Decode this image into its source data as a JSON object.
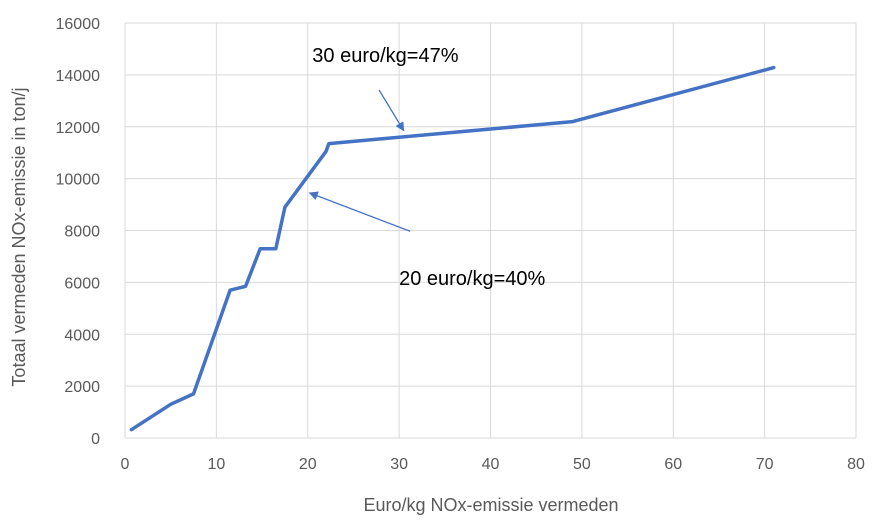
{
  "chart_data": {
    "type": "line",
    "title": "",
    "xlabel": "Euro/kg NOx-emissie vermeden",
    "ylabel": "Totaal vermeden  NOx-emissie in ton/j",
    "xlim": [
      0,
      80
    ],
    "ylim": [
      0,
      16000
    ],
    "x_ticks": [
      "0",
      "10",
      "20",
      "30",
      "40",
      "50",
      "60",
      "70",
      "80"
    ],
    "y_ticks": [
      "0",
      "2000",
      "4000",
      "6000",
      "8000",
      "10000",
      "12000",
      "14000",
      "16000"
    ],
    "grid": true,
    "legend": "none",
    "series": [
      {
        "color": "#4472C4",
        "x": [
          0.7,
          5,
          7.5,
          11.5,
          13.2,
          14.8,
          16.5,
          17.5,
          22,
          22.3,
          49,
          71
        ],
        "y": [
          320,
          1300,
          1700,
          5700,
          5850,
          7300,
          7300,
          8900,
          11050,
          11350,
          12200,
          14280
        ]
      }
    ],
    "annotations": [
      {
        "text": "30 euro/kg=47%",
        "text_x": 28.5,
        "text_y": 14500,
        "arrow_from": [
          27.8,
          13420
        ],
        "arrow_to": [
          30.5,
          11850
        ]
      },
      {
        "text": "20 euro/kg=40%",
        "text_x": 38,
        "text_y": 5900,
        "arrow_from": [
          31.2,
          7970
        ],
        "arrow_to": [
          20.2,
          9450
        ]
      }
    ]
  }
}
